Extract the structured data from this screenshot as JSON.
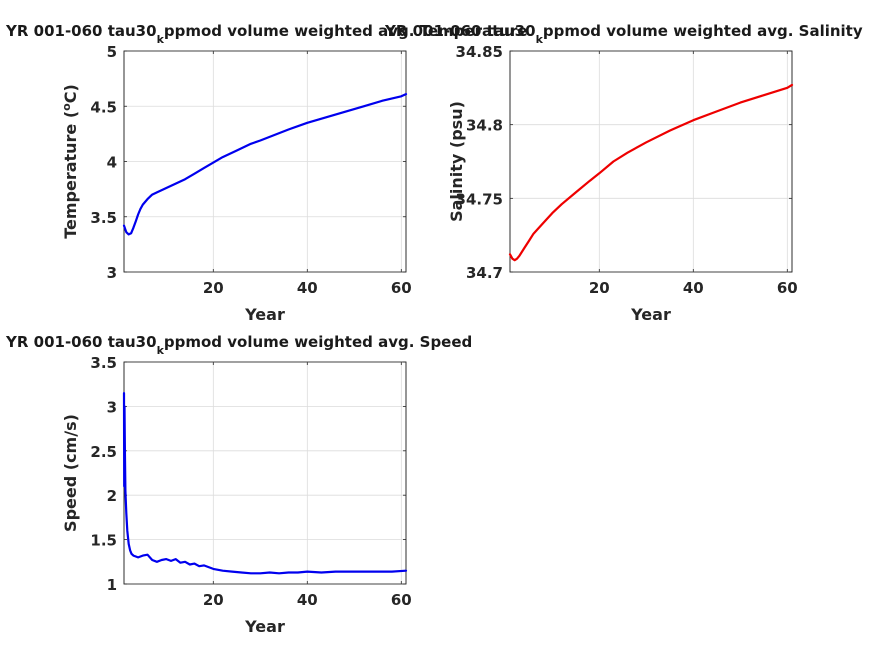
{
  "chart_data": [
    {
      "id": "temp",
      "type": "line",
      "title": "YR 001-060 tau30ₖppmod volume weighted avg. Temperature",
      "title_main": "YR 001-060 tau30",
      "title_sub": "k",
      "title_rest": "ppmod volume weighted avg. Temperature",
      "xlabel": "Year",
      "ylabel": "Temperature (°C)",
      "ylabel_pre": "Temperature (",
      "ylabel_sup": "o",
      "ylabel_post": "C)",
      "xlim": [
        1,
        61
      ],
      "ylim": [
        3,
        5
      ],
      "xticks": [
        20,
        40,
        60
      ],
      "yticks": [
        3,
        3.5,
        4,
        4.5,
        5
      ],
      "ytick_labels": [
        "3",
        "3.5",
        "4",
        "4.5",
        "5"
      ],
      "grid": true,
      "color": "#0000ee",
      "series": [
        {
          "x": [
            1,
            1.5,
            2,
            2.5,
            3,
            3.5,
            4,
            4.5,
            5,
            6,
            7,
            8,
            10,
            12,
            14,
            16,
            18,
            20,
            22,
            25,
            28,
            30,
            33,
            36,
            40,
            44,
            48,
            52,
            56,
            60,
            61
          ],
          "y": [
            3.42,
            3.36,
            3.34,
            3.35,
            3.4,
            3.46,
            3.52,
            3.57,
            3.61,
            3.66,
            3.7,
            3.72,
            3.76,
            3.8,
            3.84,
            3.89,
            3.94,
            3.99,
            4.04,
            4.1,
            4.16,
            4.19,
            4.24,
            4.29,
            4.35,
            4.4,
            4.45,
            4.5,
            4.55,
            4.59,
            4.61
          ]
        }
      ]
    },
    {
      "id": "salt",
      "type": "line",
      "title": "YR 001-060 tau30ₖppmod volume weighted avg. Salinity",
      "title_main": "YR 001-060 tau30",
      "title_sub": "k",
      "title_rest": "ppmod volume weighted avg. Salinity",
      "xlabel": "Year",
      "ylabel": "Salinity (psu)",
      "xlim": [
        1,
        61
      ],
      "ylim": [
        34.7,
        34.85
      ],
      "xticks": [
        20,
        40,
        60
      ],
      "yticks": [
        34.7,
        34.75,
        34.8,
        34.85
      ],
      "ytick_labels": [
        "34.7",
        "34.75",
        "34.8",
        "34.85"
      ],
      "grid": true,
      "color": "#ee0000",
      "series": [
        {
          "x": [
            1,
            1.5,
            2,
            2.5,
            3,
            4,
            5,
            6,
            8,
            10,
            12,
            15,
            18,
            20,
            23,
            26,
            30,
            35,
            40,
            45,
            50,
            55,
            60,
            61
          ],
          "y": [
            34.712,
            34.709,
            34.708,
            34.709,
            34.711,
            34.716,
            34.721,
            34.726,
            34.733,
            34.74,
            34.746,
            34.754,
            34.762,
            34.767,
            34.775,
            34.781,
            34.788,
            34.796,
            34.803,
            34.809,
            34.815,
            34.82,
            34.825,
            34.827
          ]
        }
      ]
    },
    {
      "id": "speed",
      "type": "line",
      "title": "YR 001-060 tau30ₖppmod volume weighted avg. Speed",
      "title_main": "YR 001-060 tau30",
      "title_sub": "k",
      "title_rest": "ppmod volume weighted avg. Speed",
      "xlabel": "Year",
      "ylabel": "Speed (cm/s)",
      "xlim": [
        1,
        61
      ],
      "ylim": [
        1,
        3.5
      ],
      "xticks": [
        20,
        40,
        60
      ],
      "yticks": [
        1,
        1.5,
        2,
        2.5,
        3,
        3.5
      ],
      "ytick_labels": [
        "1",
        "1.5",
        "2",
        "2.5",
        "3",
        "3.5"
      ],
      "grid": true,
      "color": "#0000ee",
      "series": [
        {
          "x": [
            1,
            1.05,
            1.1,
            1.2,
            1.3,
            1.5,
            1.7,
            2,
            2.3,
            2.6,
            3,
            3.5,
            4,
            5,
            6,
            7,
            8,
            9,
            10,
            11,
            12,
            13,
            14,
            15,
            16,
            17,
            18,
            20,
            22,
            24,
            26,
            28,
            30,
            32,
            34,
            36,
            38,
            40,
            43,
            46,
            50,
            54,
            58,
            61
          ],
          "y": [
            3.15,
            2.1,
            3.0,
            2.5,
            2.05,
            1.8,
            1.6,
            1.45,
            1.38,
            1.34,
            1.32,
            1.31,
            1.3,
            1.32,
            1.33,
            1.27,
            1.25,
            1.27,
            1.28,
            1.26,
            1.28,
            1.24,
            1.25,
            1.22,
            1.23,
            1.2,
            1.21,
            1.17,
            1.15,
            1.14,
            1.13,
            1.12,
            1.12,
            1.13,
            1.12,
            1.13,
            1.13,
            1.14,
            1.13,
            1.14,
            1.14,
            1.14,
            1.14,
            1.15
          ]
        }
      ]
    }
  ]
}
